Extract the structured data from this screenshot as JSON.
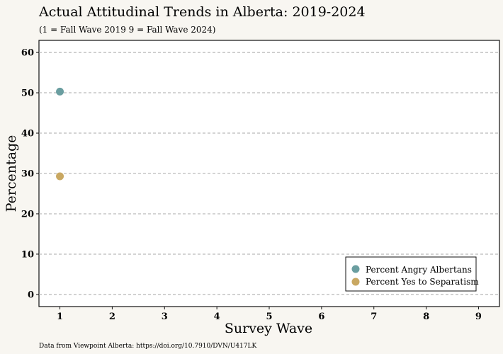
{
  "chart_data": {
    "type": "scatter",
    "title": "Actual Attitudinal Trends in Alberta: 2019-2024",
    "subtitle": "(1 = Fall Wave 2019  9 = Fall Wave 2024)",
    "xlabel": "Survey Wave",
    "ylabel": "Percentage",
    "xlim": [
      0.6,
      9.4
    ],
    "ylim": [
      -3,
      63
    ],
    "x_ticks": [
      1,
      2,
      3,
      4,
      5,
      6,
      7,
      8,
      9
    ],
    "y_ticks": [
      0,
      10,
      20,
      30,
      40,
      50,
      60
    ],
    "grid": "horizontal dashed",
    "legend_position": "bottom-right",
    "series": [
      {
        "name": "Percent Angry Albertans",
        "color": "#6a9ea0",
        "points": [
          {
            "x": 1,
            "y": 50.3
          }
        ]
      },
      {
        "name": "Percent Yes to Separatism",
        "color": "#c9a862",
        "points": [
          {
            "x": 1,
            "y": 29.3
          }
        ]
      }
    ],
    "source": "Data from Viewpoint Alberta: https://doi.org/10.7910/DVN/U417LK"
  },
  "colors": {
    "background": "#f8f6f1",
    "panel": "#ffffff",
    "grid": "#a8a8a8"
  }
}
